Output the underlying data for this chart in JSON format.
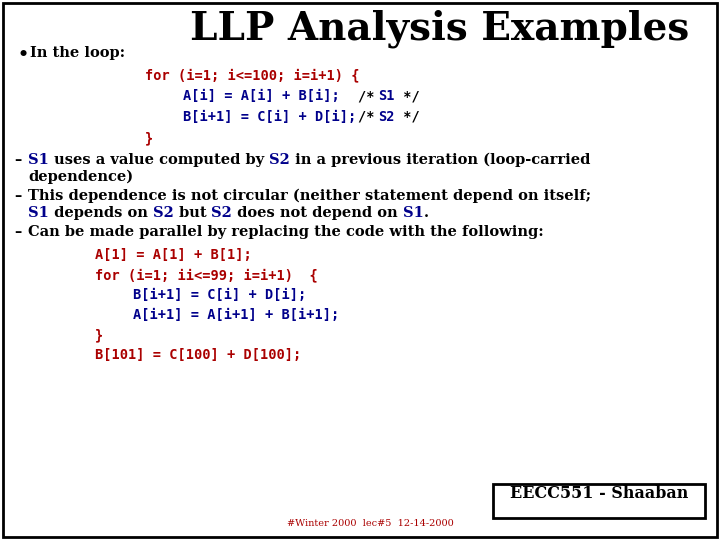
{
  "title": "LLP Analysis Examples",
  "bg_color": "#ffffff",
  "border_color": "#000000",
  "black": "#000000",
  "red": "#aa0000",
  "blue": "#00008b",
  "footer_text": "EECC551 - Shaaban",
  "footer_sub": "#Winter 2000  lec#5  12-14-2000",
  "title_fontsize": 28,
  "body_fontsize": 10.5,
  "code_fontsize": 9.8,
  "footer_fontsize": 11.5,
  "footersub_fontsize": 7.0
}
